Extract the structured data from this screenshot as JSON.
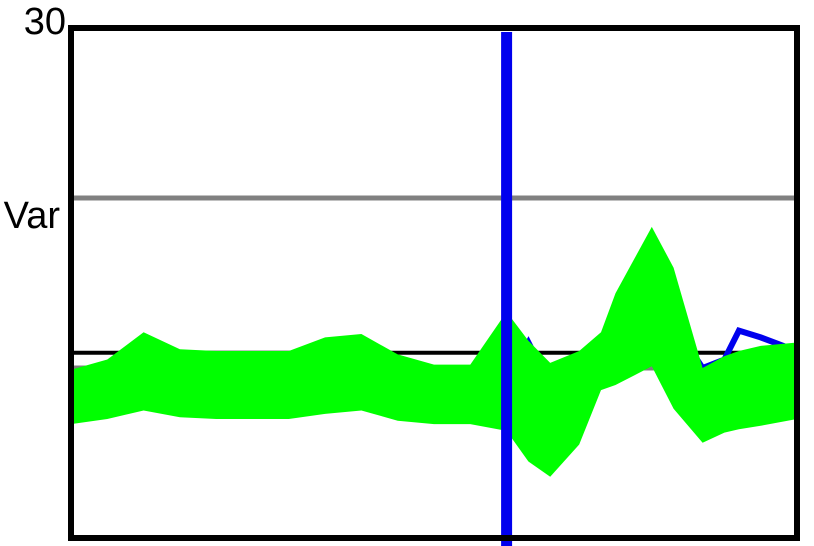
{
  "chart_data": {
    "type": "line",
    "title": "",
    "xlabel": "",
    "ylabel": "Var",
    "y_top_tick_label": "30",
    "ylim": [
      0,
      30
    ],
    "xlim": [
      0,
      100
    ],
    "grid": true,
    "gridlines_y": [
      0,
      10,
      20
    ],
    "baseline_y": 10.9,
    "marker_x": 60,
    "colors": {
      "frame": "#000000",
      "grid": "#808080",
      "baseline": "#000000",
      "marker": "#0000ee",
      "series_line": "#0000ee",
      "band": "#00ff00"
    },
    "series": [
      {
        "role": "line",
        "x": [
          0,
          5,
          10,
          15,
          20,
          30,
          40,
          50,
          55,
          60,
          63,
          66,
          70,
          73,
          75,
          80,
          83,
          87,
          90,
          92,
          95,
          100
        ],
        "y": [
          9,
          9.2,
          10,
          9.5,
          9.4,
          9.4,
          9.6,
          9.3,
          9.6,
          9.2,
          11.5,
          9.0,
          9.5,
          11.0,
          11.8,
          14.5,
          12.6,
          10.0,
          10.5,
          12.2,
          11.8,
          11.0
        ]
      },
      {
        "role": "band",
        "x": [
          0,
          5,
          10,
          15,
          20,
          25,
          30,
          35,
          40,
          45,
          50,
          55,
          60,
          63,
          66,
          70,
          73,
          75,
          80,
          83,
          87,
          90,
          92,
          95,
          100
        ],
        "lower": [
          6.7,
          7.0,
          7.5,
          7.1,
          7.0,
          7.0,
          7.0,
          7.3,
          7.5,
          6.9,
          6.7,
          6.7,
          6.3,
          4.5,
          3.6,
          5.5,
          8.7,
          9.0,
          10.1,
          7.6,
          5.6,
          6.2,
          6.4,
          6.6,
          7.0
        ],
        "upper": [
          9.9,
          10.5,
          12.1,
          11.1,
          11.0,
          11.0,
          11.0,
          11.8,
          12.0,
          10.8,
          10.2,
          10.2,
          13.3,
          11.6,
          10.3,
          11.0,
          12.1,
          14.4,
          18.3,
          15.9,
          10.0,
          10.7,
          11.0,
          11.3,
          11.5
        ]
      }
    ]
  }
}
